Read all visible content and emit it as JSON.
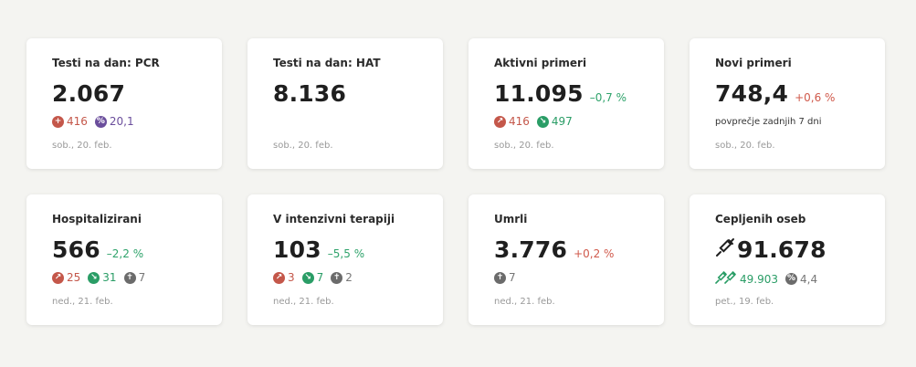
{
  "cards": [
    {
      "title": "Testi na dan: PCR",
      "value": "2.067",
      "stats": [
        {
          "icon": "plus-icon",
          "value": "416"
        },
        {
          "icon": "percent-icon",
          "value": "20,1"
        }
      ],
      "date": "sob., 20. feb."
    },
    {
      "title": "Testi na dan: HAT",
      "value": "8.136",
      "date": "sob., 20. feb."
    },
    {
      "title": "Aktivni primeri",
      "value": "11.095",
      "change": "–0,7 %",
      "stats": [
        {
          "icon": "arrow-up-right-icon",
          "value": "416"
        },
        {
          "icon": "arrow-down-right-icon",
          "value": "497"
        }
      ],
      "date": "sob., 20. feb."
    },
    {
      "title": "Novi primeri",
      "value": "748,4",
      "change": "+0,6 %",
      "note": "povprečje zadnjih 7 dni",
      "date": "sob., 20. feb."
    },
    {
      "title": "Hospitalizirani",
      "value": "566",
      "change": "–2,2 %",
      "stats": [
        {
          "icon": "arrow-up-right-icon",
          "value": "25"
        },
        {
          "icon": "arrow-down-right-icon",
          "value": "31"
        },
        {
          "icon": "cross-icon",
          "value": "7"
        }
      ],
      "date": "ned., 21. feb."
    },
    {
      "title": "V intenzivni terapiji",
      "value": "103",
      "change": "–5,5 %",
      "stats": [
        {
          "icon": "arrow-up-right-icon",
          "value": "3"
        },
        {
          "icon": "arrow-down-right-icon",
          "value": "7"
        },
        {
          "icon": "cross-icon",
          "value": "2"
        }
      ],
      "date": "ned., 21. feb."
    },
    {
      "title": "Umrli",
      "value": "3.776",
      "change": "+0,2 %",
      "stats": [
        {
          "icon": "cross-icon",
          "value": "7"
        }
      ],
      "date": "ned., 21. feb."
    },
    {
      "title": "Cepljenih oseb",
      "value": "91.678",
      "stats": [
        {
          "icon": "double-syringe-icon",
          "value": "49.903"
        },
        {
          "icon": "percent-icon",
          "value": "4,4"
        }
      ],
      "date": "pet., 19. feb."
    }
  ],
  "colors": {
    "background": "#f4f4f1",
    "card": "#ffffff",
    "positive_change": "#d0594b",
    "negative_change": "#2fa36b",
    "red_badge": "#c4574a",
    "green_badge": "#2a9d66",
    "gray_badge": "#6b6b6b",
    "purple_badge": "#6b4e9c"
  }
}
